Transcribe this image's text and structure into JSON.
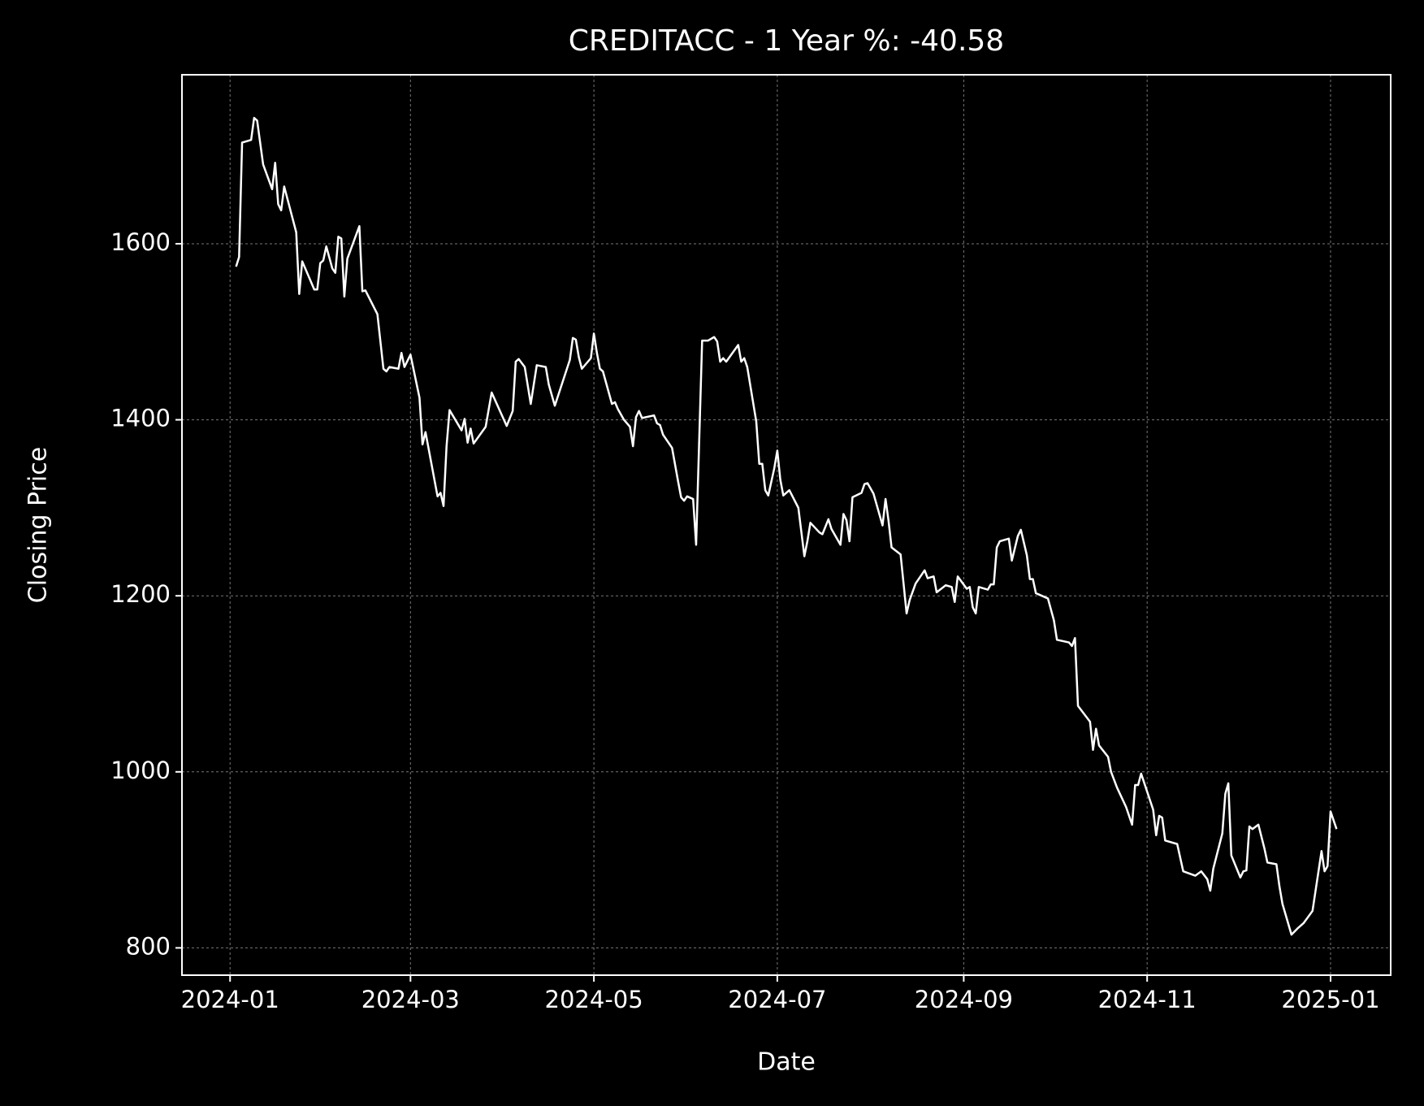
{
  "chart_data": {
    "type": "line",
    "title": "CREDITACC - 1 Year %: -40.58",
    "x_label": "Date",
    "y_label": "Closing Price",
    "grid": true,
    "xlim": [
      "2023-12-16",
      "2025-01-21"
    ],
    "ylim": [
      769,
      1792
    ],
    "xticks": [
      "2024-01",
      "2024-03",
      "2024-05",
      "2024-07",
      "2024-09",
      "2024-11",
      "2025-01"
    ],
    "yticks": [
      800,
      1000,
      1200,
      1400,
      1600
    ],
    "x": [
      "2024-01-03",
      "2024-01-04",
      "2024-01-05",
      "2024-01-08",
      "2024-01-09",
      "2024-01-10",
      "2024-01-12",
      "2024-01-15",
      "2024-01-16",
      "2024-01-17",
      "2024-01-18",
      "2024-01-19",
      "2024-01-23",
      "2024-01-24",
      "2024-01-25",
      "2024-01-29",
      "2024-01-30",
      "2024-01-31",
      "2024-02-01",
      "2024-02-02",
      "2024-02-04",
      "2024-02-05",
      "2024-02-06",
      "2024-02-07",
      "2024-02-08",
      "2024-02-09",
      "2024-02-13",
      "2024-02-14",
      "2024-02-15",
      "2024-02-19",
      "2024-02-21",
      "2024-02-22",
      "2024-02-23",
      "2024-02-26",
      "2024-02-27",
      "2024-02-28",
      "2024-03-01",
      "2024-03-04",
      "2024-03-05",
      "2024-03-06",
      "2024-03-10",
      "2024-03-11",
      "2024-03-12",
      "2024-03-13",
      "2024-03-14",
      "2024-03-18",
      "2024-03-19",
      "2024-03-20",
      "2024-03-21",
      "2024-03-22",
      "2024-03-26",
      "2024-03-28",
      "2024-04-02",
      "2024-04-04",
      "2024-04-05",
      "2024-04-06",
      "2024-04-08",
      "2024-04-10",
      "2024-04-11",
      "2024-04-12",
      "2024-04-15",
      "2024-04-16",
      "2024-04-18",
      "2024-04-23",
      "2024-04-24",
      "2024-04-25",
      "2024-04-26",
      "2024-04-27",
      "2024-04-30",
      "2024-05-01",
      "2024-05-02",
      "2024-05-03",
      "2024-05-04",
      "2024-05-07",
      "2024-05-08",
      "2024-05-09",
      "2024-05-11",
      "2024-05-13",
      "2024-05-14",
      "2024-05-15",
      "2024-05-16",
      "2024-05-17",
      "2024-05-21",
      "2024-05-22",
      "2024-05-23",
      "2024-05-24",
      "2024-05-27",
      "2024-05-29",
      "2024-05-30",
      "2024-05-31",
      "2024-06-01",
      "2024-06-03",
      "2024-06-04",
      "2024-06-06",
      "2024-06-08",
      "2024-06-10",
      "2024-06-11",
      "2024-06-12",
      "2024-06-13",
      "2024-06-14",
      "2024-06-18",
      "2024-06-19",
      "2024-06-20",
      "2024-06-21",
      "2024-06-24",
      "2024-06-25",
      "2024-06-26",
      "2024-06-27",
      "2024-06-28",
      "2024-06-30",
      "2024-07-01",
      "2024-07-02",
      "2024-07-03",
      "2024-07-05",
      "2024-07-08",
      "2024-07-10",
      "2024-07-11",
      "2024-07-12",
      "2024-07-15",
      "2024-07-16",
      "2024-07-18",
      "2024-07-19",
      "2024-07-22",
      "2024-07-23",
      "2024-07-24",
      "2024-07-25",
      "2024-07-26",
      "2024-07-29",
      "2024-07-30",
      "2024-07-31",
      "2024-08-02",
      "2024-08-05",
      "2024-08-06",
      "2024-08-07",
      "2024-08-08",
      "2024-08-11",
      "2024-08-13",
      "2024-08-14",
      "2024-08-16",
      "2024-08-19",
      "2024-08-20",
      "2024-08-22",
      "2024-08-23",
      "2024-08-26",
      "2024-08-28",
      "2024-08-29",
      "2024-08-30",
      "2024-09-02",
      "2024-09-03",
      "2024-09-04",
      "2024-09-05",
      "2024-09-06",
      "2024-09-09",
      "2024-09-10",
      "2024-09-11",
      "2024-09-12",
      "2024-09-13",
      "2024-09-16",
      "2024-09-17",
      "2024-09-19",
      "2024-09-20",
      "2024-09-22",
      "2024-09-23",
      "2024-09-24",
      "2024-09-25",
      "2024-09-29",
      "2024-10-01",
      "2024-10-02",
      "2024-10-06",
      "2024-10-07",
      "2024-10-08",
      "2024-10-09",
      "2024-10-13",
      "2024-10-14",
      "2024-10-15",
      "2024-10-16",
      "2024-10-19",
      "2024-10-20",
      "2024-10-22",
      "2024-10-25",
      "2024-10-27",
      "2024-10-28",
      "2024-10-29",
      "2024-10-30",
      "2024-11-03",
      "2024-11-04",
      "2024-11-05",
      "2024-11-06",
      "2024-11-07",
      "2024-11-11",
      "2024-11-13",
      "2024-11-17",
      "2024-11-19",
      "2024-11-21",
      "2024-11-22",
      "2024-11-23",
      "2024-11-26",
      "2024-11-27",
      "2024-11-28",
      "2024-11-29",
      "2024-12-02",
      "2024-12-03",
      "2024-12-04",
      "2024-12-05",
      "2024-12-06",
      "2024-12-08",
      "2024-12-10",
      "2024-12-11",
      "2024-12-14",
      "2024-12-15",
      "2024-12-16",
      "2024-12-19",
      "2024-12-21",
      "2024-12-23",
      "2024-12-26",
      "2024-12-29",
      "2024-12-30",
      "2024-12-31",
      "2025-01-01",
      "2025-01-03"
    ],
    "series": [
      {
        "color": "#ffffff",
        "values": [
          1574,
          1585,
          1715,
          1718,
          1743,
          1740,
          1690,
          1662,
          1692,
          1645,
          1638,
          1665,
          1613,
          1543,
          1580,
          1548,
          1548,
          1578,
          1581,
          1597,
          1572,
          1567,
          1608,
          1606,
          1540,
          1583,
          1620,
          1546,
          1547,
          1520,
          1458,
          1455,
          1460,
          1458,
          1476,
          1460,
          1474,
          1425,
          1372,
          1386,
          1313,
          1317,
          1302,
          1370,
          1411,
          1388,
          1401,
          1374,
          1390,
          1373,
          1392,
          1431,
          1393,
          1410,
          1466,
          1469,
          1460,
          1418,
          1440,
          1462,
          1460,
          1440,
          1416,
          1468,
          1493,
          1491,
          1471,
          1458,
          1470,
          1498,
          1476,
          1458,
          1455,
          1418,
          1420,
          1412,
          1400,
          1392,
          1370,
          1403,
          1410,
          1402,
          1405,
          1396,
          1394,
          1383,
          1368,
          1330,
          1312,
          1308,
          1313,
          1310,
          1258,
          1490,
          1490,
          1494,
          1489,
          1466,
          1470,
          1466,
          1485,
          1466,
          1470,
          1460,
          1398,
          1350,
          1350,
          1320,
          1314,
          1345,
          1365,
          1332,
          1314,
          1320,
          1300,
          1245,
          1262,
          1283,
          1272,
          1270,
          1287,
          1276,
          1258,
          1293,
          1286,
          1262,
          1312,
          1317,
          1327,
          1328,
          1316,
          1280,
          1310,
          1285,
          1255,
          1247,
          1180,
          1195,
          1214,
          1229,
          1220,
          1222,
          1204,
          1212,
          1210,
          1193,
          1222,
          1208,
          1210,
          1187,
          1180,
          1210,
          1207,
          1213,
          1213,
          1255,
          1262,
          1265,
          1240,
          1268,
          1275,
          1246,
          1219,
          1219,
          1203,
          1197,
          1172,
          1150,
          1147,
          1143,
          1152,
          1075,
          1057,
          1025,
          1049,
          1030,
          1017,
          1000,
          982,
          960,
          940,
          985,
          985,
          998,
          957,
          928,
          950,
          948,
          922,
          918,
          887,
          882,
          887,
          878,
          865,
          890,
          930,
          975,
          987,
          905,
          880,
          887,
          888,
          938,
          935,
          940,
          913,
          897,
          895,
          870,
          850,
          815,
          822,
          828,
          842,
          910,
          887,
          893,
          955,
          935
        ]
      }
    ]
  }
}
